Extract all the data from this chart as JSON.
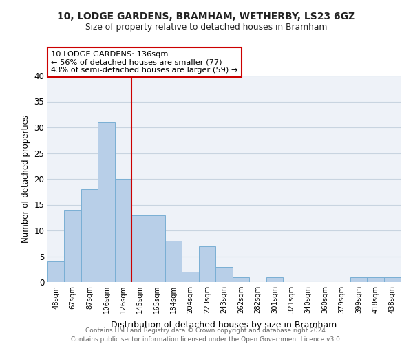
{
  "title1": "10, LODGE GARDENS, BRAMHAM, WETHERBY, LS23 6GZ",
  "title2": "Size of property relative to detached houses in Bramham",
  "xlabel": "Distribution of detached houses by size in Bramham",
  "ylabel": "Number of detached properties",
  "bar_labels": [
    "48sqm",
    "67sqm",
    "87sqm",
    "106sqm",
    "126sqm",
    "145sqm",
    "165sqm",
    "184sqm",
    "204sqm",
    "223sqm",
    "243sqm",
    "262sqm",
    "282sqm",
    "301sqm",
    "321sqm",
    "340sqm",
    "360sqm",
    "379sqm",
    "399sqm",
    "418sqm",
    "438sqm"
  ],
  "bar_values": [
    4,
    14,
    18,
    31,
    20,
    13,
    13,
    8,
    2,
    7,
    3,
    1,
    0,
    1,
    0,
    0,
    0,
    0,
    1,
    1,
    1
  ],
  "bar_color": "#b8cfe8",
  "bar_edge_color": "#7aafd4",
  "vline_x_idx": 4.5,
  "vline_color": "#cc0000",
  "annotation_line1": "10 LODGE GARDENS: 136sqm",
  "annotation_line2": "← 56% of detached houses are smaller (77)",
  "annotation_line3": "43% of semi-detached houses are larger (59) →",
  "ylim": [
    0,
    40
  ],
  "yticks": [
    0,
    5,
    10,
    15,
    20,
    25,
    30,
    35,
    40
  ],
  "grid_color": "#c8d4e0",
  "bg_color": "#eef2f8",
  "footer_line1": "Contains HM Land Registry data © Crown copyright and database right 2024.",
  "footer_line2": "Contains public sector information licensed under the Open Government Licence v3.0."
}
